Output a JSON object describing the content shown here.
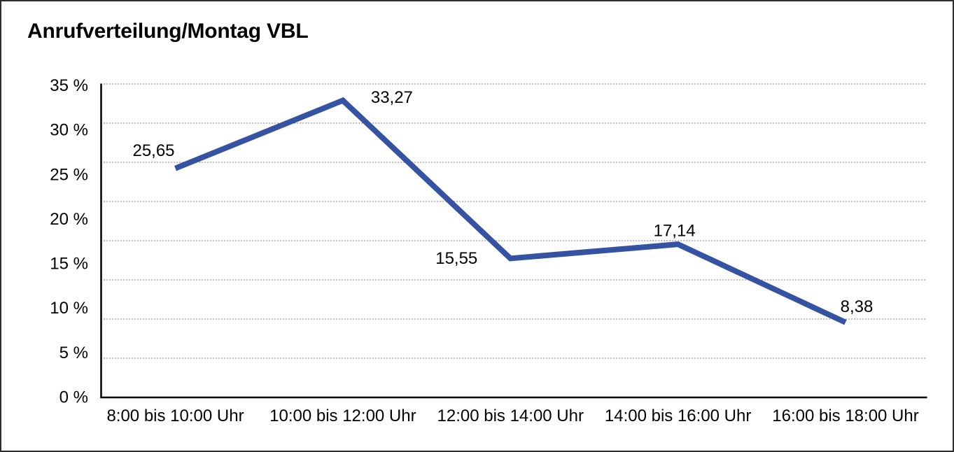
{
  "window": {
    "title": "Anrufverteilung/Montag VBL"
  },
  "chart_data": {
    "type": "line",
    "title": "Anrufverteilung/Montag VBL",
    "categories": [
      "8:00 bis 10:00 Uhr",
      "10:00 bis 12:00 Uhr",
      "12:00 bis 14:00 Uhr",
      "14:00 bis 16:00 Uhr",
      "16:00 bis 18:00 Uhr"
    ],
    "values": [
      25.65,
      33.27,
      15.55,
      17.14,
      8.38
    ],
    "value_labels": [
      "25,65",
      "33,27",
      "15,55",
      "17,14",
      "8,38"
    ],
    "y_tick_labels": [
      "35 %",
      "30 %",
      "25 %",
      "20 %",
      "15 %",
      "10 %",
      "5 %",
      "0 %"
    ],
    "ylim": [
      0,
      35
    ],
    "y_tick_step": 5,
    "xlabel": "",
    "ylabel": "",
    "legend": "none",
    "grid": "horizontal-dotted",
    "grid_divisions": 8,
    "line_color": "#3553A2",
    "axis_color": "#000000",
    "grid_color": "#4d4d4d",
    "text_color": "#000000"
  }
}
